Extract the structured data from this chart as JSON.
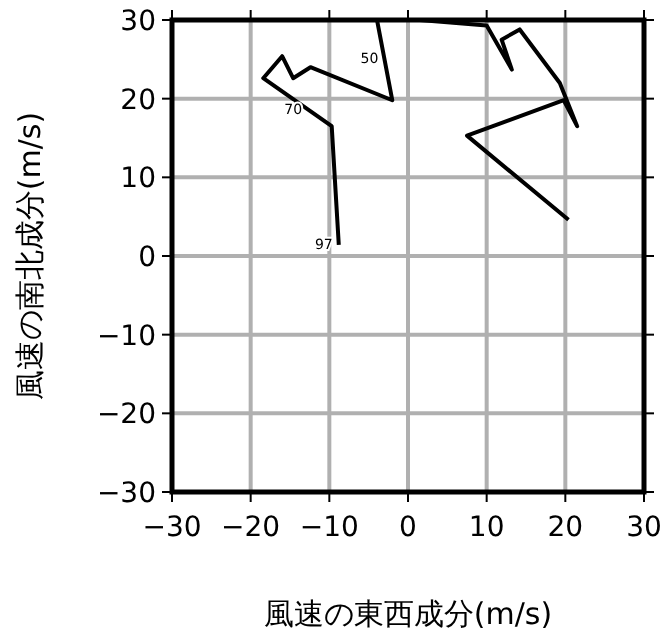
{
  "chart_data": {
    "type": "line",
    "xlabel": "風速の東西成分(m/s)",
    "ylabel": "風速の南北成分(m/s)",
    "x": [
      -8.8,
      -9.7,
      -18.4,
      -16.0,
      -14.6,
      -12.4,
      -2.0,
      -3.9,
      null,
      1.5,
      10.0,
      13.2,
      11.9,
      14.2,
      19.3,
      21.5,
      19.8,
      7.5,
      20.4
    ],
    "series": [
      {
        "color": "#000000",
        "values": [
          1.4,
          16.5,
          22.6,
          25.4,
          22.6,
          24.0,
          19.8,
          29.8,
          null,
          30,
          29.3,
          23.7,
          27.5,
          28.8,
          22.0,
          16.5,
          19.8,
          15.3,
          4.6
        ]
      }
    ],
    "xlim": [
      -30,
      30
    ],
    "ylim": [
      -30,
      30
    ],
    "xticks": [
      -30,
      -20,
      -10,
      0,
      10,
      20,
      30
    ],
    "yticks": [
      -30,
      -20,
      -10,
      0,
      10,
      20,
      30
    ],
    "grid": true,
    "annotations": [
      {
        "text": "50",
        "x": -3.0,
        "y": 25.0
      },
      {
        "text": "70",
        "x": -12.7,
        "y": 18.6
      },
      {
        "text": "97",
        "x": -8.8,
        "y": 1.4
      }
    ]
  }
}
